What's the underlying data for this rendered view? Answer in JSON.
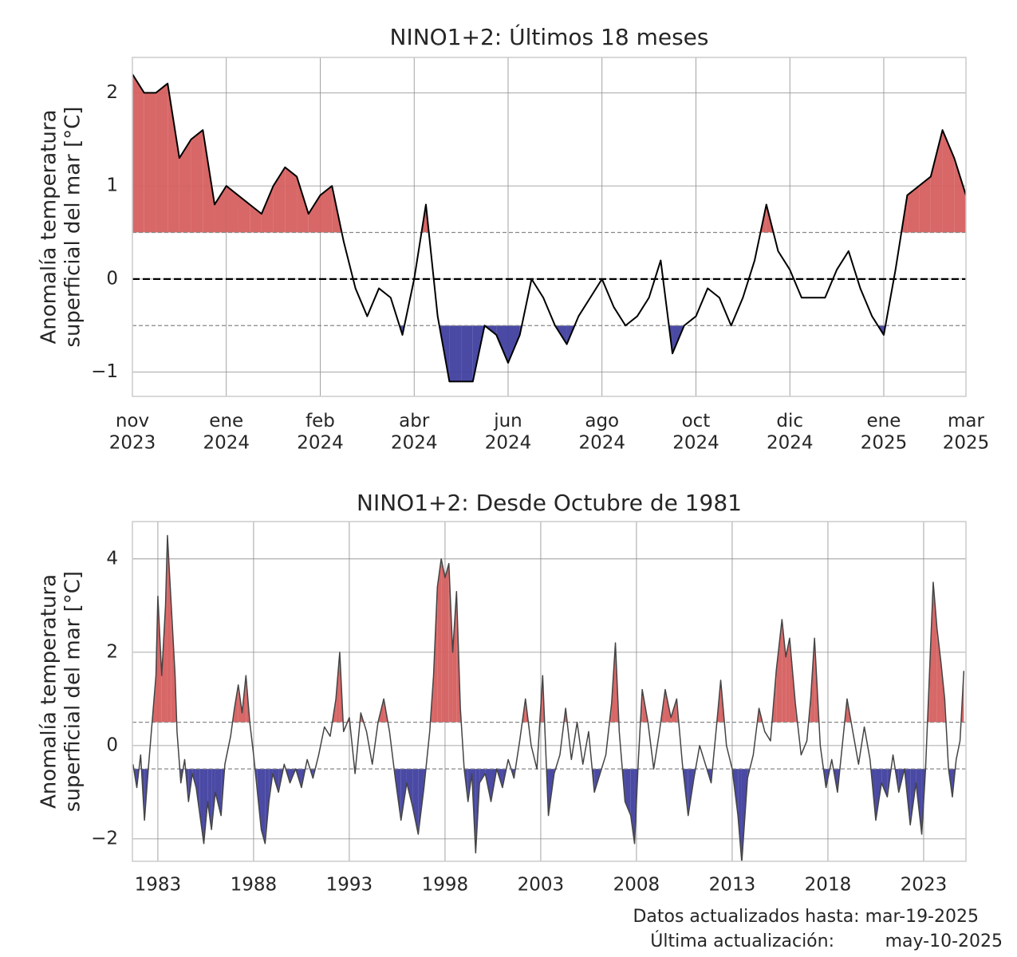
{
  "chart_data": [
    {
      "type": "line",
      "title": "NINO1+2: Últimos 18 meses",
      "ylabel": [
        "Anomalía temperatura",
        "superficial del mar [°C]"
      ],
      "values": [
        2.2,
        2.0,
        2.0,
        2.1,
        1.3,
        1.5,
        1.6,
        0.8,
        1.0,
        0.9,
        0.8,
        0.7,
        1.0,
        1.2,
        1.1,
        0.7,
        0.9,
        1.0,
        0.4,
        -0.1,
        -0.4,
        -0.1,
        -0.2,
        -0.6,
        0.0,
        0.8,
        -0.4,
        -1.1,
        -1.1,
        -1.1,
        -0.5,
        -0.6,
        -0.9,
        -0.6,
        0.0,
        -0.2,
        -0.5,
        -0.7,
        -0.4,
        -0.2,
        0.0,
        -0.3,
        -0.5,
        -0.4,
        -0.2,
        0.2,
        -0.8,
        -0.5,
        -0.4,
        -0.1,
        -0.2,
        -0.5,
        -0.2,
        0.2,
        0.8,
        0.3,
        0.1,
        -0.2,
        -0.2,
        -0.2,
        0.1,
        0.3,
        -0.1,
        -0.4,
        -0.6,
        0.1,
        0.9,
        1.0,
        1.1,
        1.6,
        1.3,
        0.9
      ],
      "color": "#000000",
      "fill_above_color": "#d65f5f",
      "fill_below_color": "#4040a0",
      "thresholds": [
        0.5,
        -0.5
      ],
      "reference_line": 0,
      "xlim": [
        0,
        71
      ],
      "xticks": [
        {
          "value": 0,
          "label": "nov\n2023"
        },
        {
          "value": 8,
          "label": "ene\n2024"
        },
        {
          "value": 16,
          "label": "feb\n2024"
        },
        {
          "value": 24,
          "label": "abr\n2024"
        },
        {
          "value": 32,
          "label": "jun\n2024"
        },
        {
          "value": 40,
          "label": "ago\n2024"
        },
        {
          "value": 48,
          "label": "oct\n2024"
        },
        {
          "value": 56,
          "label": "dic\n2024"
        },
        {
          "value": 64,
          "label": "ene\n2025"
        },
        {
          "value": 71,
          "label": "mar\n2025"
        }
      ],
      "ylim": [
        -1.26,
        2.38
      ],
      "yticks": [
        {
          "value": -1,
          "label": "−1"
        },
        0,
        1,
        2
      ],
      "grid": true
    },
    {
      "type": "line",
      "title": "NINO1+2: Desde Octubre de 1981",
      "ylabel": [
        "Anomalía temperatura",
        "superficial del mar [°C]"
      ],
      "x": [
        1981.7,
        1981.9,
        1982.1,
        1982.3,
        1982.5,
        1982.7,
        1982.9,
        1983.0,
        1983.2,
        1983.4,
        1983.5,
        1983.7,
        1983.9,
        1984.0,
        1984.2,
        1984.4,
        1984.6,
        1984.8,
        1985.0,
        1985.2,
        1985.4,
        1985.6,
        1985.8,
        1986.0,
        1986.3,
        1986.5,
        1986.8,
        1987.0,
        1987.2,
        1987.4,
        1987.6,
        1987.8,
        1988.0,
        1988.2,
        1988.4,
        1988.6,
        1988.8,
        1989.0,
        1989.3,
        1989.6,
        1989.9,
        1990.2,
        1990.5,
        1990.8,
        1991.1,
        1991.4,
        1991.7,
        1992.0,
        1992.3,
        1992.5,
        1992.7,
        1993.0,
        1993.3,
        1993.6,
        1993.9,
        1994.2,
        1994.5,
        1994.8,
        1995.1,
        1995.4,
        1995.7,
        1996.0,
        1996.3,
        1996.6,
        1996.9,
        1997.2,
        1997.4,
        1997.6,
        1997.8,
        1998.0,
        1998.2,
        1998.4,
        1998.6,
        1998.8,
        1999.0,
        1999.2,
        1999.4,
        1999.6,
        1999.8,
        2000.1,
        2000.4,
        2000.7,
        2001.0,
        2001.3,
        2001.6,
        2001.9,
        2002.2,
        2002.5,
        2002.8,
        2003.1,
        2003.4,
        2003.7,
        2004.0,
        2004.3,
        2004.6,
        2004.9,
        2005.2,
        2005.5,
        2005.8,
        2006.1,
        2006.4,
        2006.7,
        2006.9,
        2007.1,
        2007.4,
        2007.7,
        2007.9,
        2008.1,
        2008.3,
        2008.6,
        2008.9,
        2009.2,
        2009.5,
        2009.8,
        2010.1,
        2010.4,
        2010.7,
        2011.0,
        2011.3,
        2011.6,
        2011.9,
        2012.2,
        2012.4,
        2012.7,
        2013.0,
        2013.3,
        2013.5,
        2013.8,
        2014.1,
        2014.4,
        2014.7,
        2015.0,
        2015.3,
        2015.6,
        2015.8,
        2016.0,
        2016.3,
        2016.6,
        2016.9,
        2017.1,
        2017.3,
        2017.6,
        2017.9,
        2018.2,
        2018.5,
        2018.8,
        2019.0,
        2019.3,
        2019.6,
        2019.9,
        2020.2,
        2020.5,
        2020.8,
        2021.1,
        2021.4,
        2021.7,
        2022.0,
        2022.3,
        2022.6,
        2022.9,
        2023.1,
        2023.3,
        2023.5,
        2023.7,
        2023.9,
        2024.1,
        2024.3,
        2024.5,
        2024.7,
        2024.9,
        2025.1
      ],
      "values": [
        -0.4,
        -0.9,
        -0.2,
        -1.6,
        -0.5,
        0.5,
        1.5,
        3.2,
        1.5,
        3.0,
        4.5,
        3.0,
        1.5,
        0.3,
        -0.8,
        -0.3,
        -1.2,
        -0.6,
        -0.9,
        -1.5,
        -2.1,
        -1.2,
        -1.8,
        -1.0,
        -1.5,
        -0.4,
        0.2,
        0.8,
        1.3,
        0.7,
        1.5,
        0.5,
        -0.2,
        -1.0,
        -1.8,
        -2.1,
        -1.2,
        -0.6,
        -1.0,
        -0.4,
        -0.8,
        -0.5,
        -0.9,
        -0.3,
        -0.7,
        -0.2,
        0.4,
        0.2,
        1.0,
        2.0,
        0.3,
        0.6,
        -0.6,
        0.7,
        0.3,
        -0.4,
        0.5,
        1.0,
        0.3,
        -0.7,
        -1.6,
        -0.8,
        -1.3,
        -1.9,
        -0.9,
        0.3,
        1.5,
        3.4,
        4.0,
        3.6,
        3.9,
        2.0,
        3.3,
        0.8,
        -0.5,
        -1.2,
        -0.6,
        -2.3,
        -0.8,
        -0.6,
        -1.2,
        -0.5,
        -0.9,
        -0.3,
        -0.7,
        0.1,
        1.0,
        0.0,
        -0.5,
        1.5,
        -1.5,
        -0.6,
        -0.2,
        0.8,
        -0.3,
        0.5,
        -0.4,
        0.3,
        -1.0,
        -0.6,
        -0.2,
        0.9,
        2.2,
        0.3,
        -1.2,
        -1.5,
        -2.1,
        -0.3,
        1.2,
        0.5,
        -0.5,
        0.3,
        1.2,
        0.6,
        1.0,
        -0.4,
        -1.5,
        -0.7,
        0.0,
        -0.4,
        -0.8,
        0.5,
        1.4,
        0.0,
        -0.5,
        -1.5,
        -2.5,
        -0.7,
        -0.2,
        0.8,
        0.3,
        0.1,
        1.6,
        2.7,
        1.9,
        2.3,
        0.9,
        -0.2,
        0.1,
        1.0,
        2.3,
        0.0,
        -0.9,
        -0.3,
        -1.0,
        0.2,
        1.0,
        0.3,
        -0.4,
        0.4,
        -0.3,
        -1.6,
        -0.8,
        -1.1,
        -0.2,
        -1.0,
        -0.5,
        -1.7,
        -0.8,
        -1.9,
        -0.5,
        1.5,
        3.5,
        2.5,
        1.8,
        1.0,
        -0.5,
        -1.1,
        -0.3,
        0.1,
        1.6
      ],
      "color": "#444444",
      "fill_above_color": "#d65f5f",
      "fill_below_color": "#4040a0",
      "thresholds": [
        0.5,
        -0.5
      ],
      "xlim": [
        1981.67,
        2025.21
      ],
      "xticks": [
        1983,
        1988,
        1993,
        1998,
        2003,
        2008,
        2013,
        2018,
        2023
      ],
      "ylim": [
        -2.48,
        4.8
      ],
      "yticks": [
        {
          "value": -2,
          "label": "−2"
        },
        0,
        2,
        4
      ],
      "grid": true
    }
  ],
  "footer": {
    "updated": "Datos actualizados hasta: mar-19-2025",
    "last_update_label": "Última actualización:",
    "last_update_value": "may-10-2025"
  }
}
